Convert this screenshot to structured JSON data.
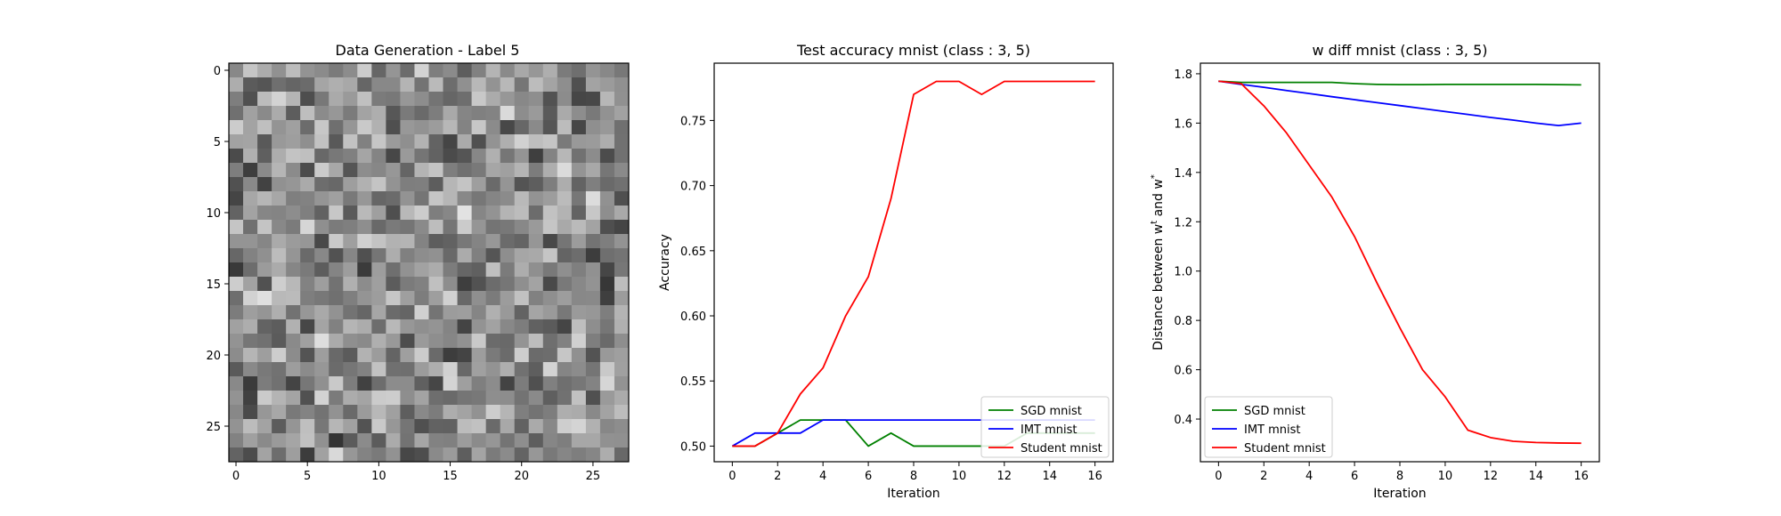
{
  "chart_data": [
    {
      "type": "heatmap",
      "title": "Data Generation - Label 5",
      "colormap": "gray",
      "rows": 28,
      "cols": 28,
      "xlim": [
        -0.5,
        27.5
      ],
      "ylim": [
        27.5,
        -0.5
      ],
      "xticks": [
        0,
        5,
        10,
        15,
        20,
        25
      ],
      "yticks": [
        0,
        5,
        10,
        15,
        20,
        25
      ],
      "note_values": "random gray pixel intensities 0-255"
    },
    {
      "type": "line",
      "title": "Test accuracy mnist (class : 3, 5)",
      "xlabel": "Iteration",
      "ylabel": "Accuracy",
      "xlim": [
        -0.8,
        16.8
      ],
      "ylim": [
        0.488,
        0.794
      ],
      "xticks": [
        0,
        2,
        4,
        6,
        8,
        10,
        12,
        14,
        16
      ],
      "yticks": [
        0.5,
        0.55,
        0.6,
        0.65,
        0.7,
        0.75
      ],
      "ytick_labels": [
        "0.50",
        "0.55",
        "0.60",
        "0.65",
        "0.70",
        "0.75"
      ],
      "legend_position": "lower-right",
      "x": [
        0,
        1,
        2,
        3,
        4,
        5,
        6,
        7,
        8,
        9,
        10,
        11,
        12,
        13,
        14,
        15,
        16
      ],
      "series": [
        {
          "name": "SGD mnist",
          "color": "#008000",
          "values": [
            0.5,
            0.5,
            0.51,
            0.52,
            0.52,
            0.52,
            0.5,
            0.51,
            0.5,
            0.5,
            0.5,
            0.5,
            0.5,
            0.51,
            0.51,
            0.51,
            0.51
          ]
        },
        {
          "name": "IMT mnist",
          "color": "#0000ff",
          "values": [
            0.5,
            0.51,
            0.51,
            0.51,
            0.52,
            0.52,
            0.52,
            0.52,
            0.52,
            0.52,
            0.52,
            0.52,
            0.52,
            0.52,
            0.52,
            0.52,
            0.52
          ]
        },
        {
          "name": "Student mnist",
          "color": "#ff0000",
          "values": [
            0.5,
            0.5,
            0.51,
            0.54,
            0.56,
            0.6,
            0.63,
            0.69,
            0.77,
            0.78,
            0.78,
            0.77,
            0.78,
            0.78,
            0.78,
            0.78,
            0.78
          ]
        }
      ]
    },
    {
      "type": "line",
      "title": "w diff mnist (class : 3, 5)",
      "xlabel": "Iteration",
      "ylabel": "Distance between w",
      "ylabel_sup1": "t",
      "ylabel_mid": " and w",
      "ylabel_sup2": "*",
      "xlim": [
        -0.8,
        16.8
      ],
      "ylim": [
        0.227,
        1.843
      ],
      "xticks": [
        0,
        2,
        4,
        6,
        8,
        10,
        12,
        14,
        16
      ],
      "yticks": [
        0.4,
        0.6,
        0.8,
        1.0,
        1.2,
        1.4,
        1.6,
        1.8
      ],
      "ytick_labels": [
        "0.4",
        "0.6",
        "0.8",
        "1.0",
        "1.2",
        "1.4",
        "1.6",
        "1.8"
      ],
      "legend_position": "lower-left",
      "x": [
        0,
        1,
        2,
        3,
        4,
        5,
        6,
        7,
        8,
        9,
        10,
        11,
        12,
        13,
        14,
        15,
        16
      ],
      "series": [
        {
          "name": "SGD mnist",
          "color": "#008000",
          "values": [
            1.77,
            1.765,
            1.765,
            1.765,
            1.765,
            1.765,
            1.76,
            1.757,
            1.756,
            1.756,
            1.757,
            1.757,
            1.757,
            1.757,
            1.757,
            1.756,
            1.755
          ]
        },
        {
          "name": "IMT mnist",
          "color": "#0000ff",
          "values": [
            1.77,
            1.757,
            1.745,
            1.732,
            1.72,
            1.707,
            1.695,
            1.683,
            1.671,
            1.659,
            1.647,
            1.635,
            1.623,
            1.612,
            1.6,
            1.59,
            1.6
          ]
        },
        {
          "name": "Student mnist",
          "color": "#ff0000",
          "values": [
            1.77,
            1.76,
            1.67,
            1.56,
            1.43,
            1.3,
            1.14,
            0.95,
            0.77,
            0.6,
            0.49,
            0.355,
            0.325,
            0.31,
            0.305,
            0.303,
            0.302
          ]
        }
      ]
    }
  ]
}
